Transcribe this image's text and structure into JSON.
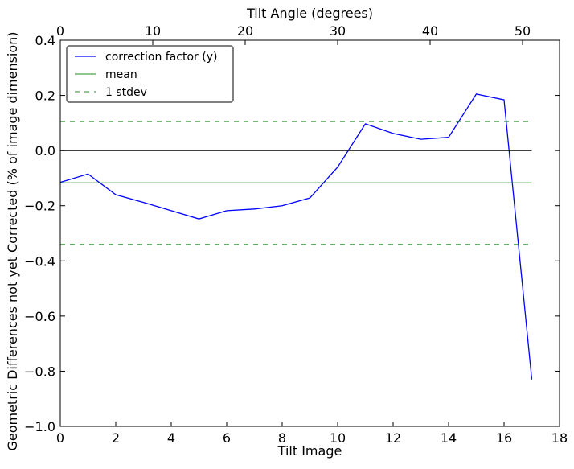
{
  "chart_data": {
    "type": "line",
    "xlabel": "Tilt Image",
    "ylabel": "Geometric Differences not yet Corrected (% of image dimension)",
    "secondary_xlabel": "Tilt Angle (degrees)",
    "xlim": [
      0,
      18
    ],
    "ylim": [
      -1.0,
      0.4
    ],
    "secondary_xlim": [
      0,
      54
    ],
    "x_ticks": [
      0,
      2,
      4,
      6,
      8,
      10,
      12,
      14,
      16,
      18
    ],
    "x_tick_labels": [
      "0",
      "2",
      "4",
      "6",
      "8",
      "10",
      "12",
      "14",
      "16",
      "18"
    ],
    "y_ticks": [
      -1.0,
      -0.8,
      -0.6,
      -0.4,
      -0.2,
      0.0,
      0.2,
      0.4
    ],
    "y_tick_labels": [
      "−1.0",
      "−0.8",
      "−0.6",
      "−0.4",
      "−0.2",
      "0.0",
      "0.2",
      "0.4"
    ],
    "secondary_x_ticks": [
      0,
      10,
      20,
      30,
      40,
      50
    ],
    "secondary_x_tick_labels": [
      "0",
      "10",
      "20",
      "30",
      "40",
      "50"
    ],
    "grid": false,
    "legend_position": "top-left",
    "series": [
      {
        "name": "correction factor (y)",
        "color": "#0000ff",
        "style": "solid",
        "x": [
          0,
          1,
          2,
          3,
          4,
          5,
          6,
          7,
          8,
          9,
          10,
          11,
          12,
          13,
          14,
          15,
          16,
          17
        ],
        "y": [
          -0.115,
          -0.085,
          -0.16,
          -0.188,
          -0.218,
          -0.248,
          -0.218,
          -0.212,
          -0.2,
          -0.172,
          -0.06,
          0.097,
          0.062,
          0.041,
          0.048,
          0.205,
          0.184,
          -0.83
        ]
      },
      {
        "name": "mean",
        "color": "#008000",
        "style": "solid",
        "x": [
          0,
          17
        ],
        "y": [
          -0.117,
          -0.117
        ]
      },
      {
        "name": "1 stdev",
        "color": "#008000",
        "style": "dashed",
        "x": [
          0,
          17
        ],
        "y": [
          0.105,
          0.105
        ]
      },
      {
        "color": "#008000",
        "style": "dashed",
        "x": [
          0,
          17
        ],
        "y": [
          -0.34,
          -0.34
        ]
      },
      {
        "color": "#000000",
        "style": "solid",
        "x": [
          0,
          17
        ],
        "y": [
          0.0,
          0.0
        ]
      }
    ]
  }
}
